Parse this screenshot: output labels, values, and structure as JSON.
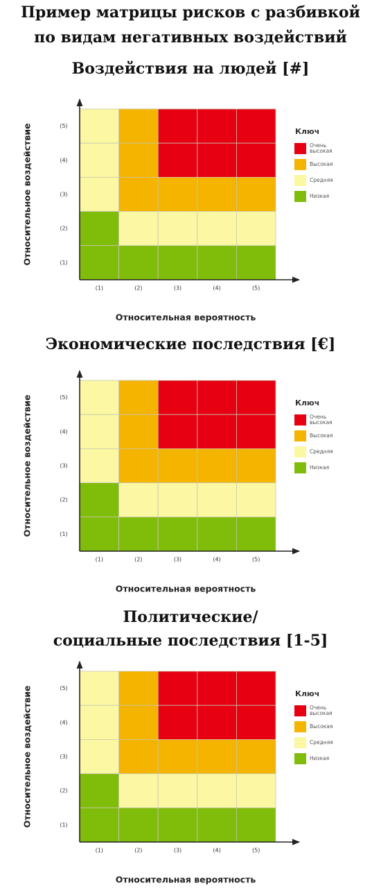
{
  "title": [
    "Пример матрицы рисков с разбивкой",
    "по видам негативных воздействий"
  ],
  "key": {
    "title": "Ключ",
    "items": [
      {
        "lines": [
          "Очень",
          "высокая"
        ],
        "color": "#e60012"
      },
      {
        "lines": [
          "Высокая"
        ],
        "color": "#f4b400"
      },
      {
        "lines": [
          "Средняя"
        ],
        "color": "#fbf7a2"
      },
      {
        "lines": [
          "Низкая"
        ],
        "color": "#80bc0a"
      }
    ]
  },
  "matrices": [
    {
      "title": [
        "Воздействия на людей [#]"
      ],
      "y_label": "Относительное воздействие",
      "x_label": "Относительная вероятность",
      "rows": [
        "(5)",
        "(4)",
        "(3)",
        "(2)",
        "(1)"
      ],
      "columns": [
        "(1)",
        "(2)",
        "(3)",
        "(4)",
        "(5)"
      ],
      "cells": [
        [
          2,
          1,
          0,
          0,
          0
        ],
        [
          2,
          1,
          0,
          0,
          0
        ],
        [
          2,
          1,
          1,
          1,
          1
        ],
        [
          3,
          2,
          2,
          2,
          2
        ],
        [
          3,
          3,
          3,
          3,
          3
        ]
      ]
    },
    {
      "title": [
        "Экономические последствия [€]"
      ],
      "y_label": "Относительное воздействие",
      "x_label": "Относительная вероятность",
      "rows": [
        "(5)",
        "(4)",
        "(3)",
        "(2)",
        "(1)"
      ],
      "columns": [
        "(1)",
        "(2)",
        "(3)",
        "(4)",
        "(5)"
      ],
      "cells": [
        [
          2,
          1,
          0,
          0,
          0
        ],
        [
          2,
          1,
          0,
          0,
          0
        ],
        [
          2,
          1,
          1,
          1,
          1
        ],
        [
          3,
          2,
          2,
          2,
          2
        ],
        [
          3,
          3,
          3,
          3,
          3
        ]
      ]
    },
    {
      "title": [
        "Политические/",
        "социальные последствия [1-5]"
      ],
      "y_label": "Относительное воздействие",
      "x_label": "Относительная вероятность",
      "rows": [
        "(5)",
        "(4)",
        "(3)",
        "(2)",
        "(1)"
      ],
      "columns": [
        "(1)",
        "(2)",
        "(3)",
        "(4)",
        "(5)"
      ],
      "cells": [
        [
          2,
          1,
          0,
          0,
          0
        ],
        [
          2,
          1,
          0,
          0,
          0
        ],
        [
          2,
          1,
          1,
          1,
          1
        ],
        [
          3,
          2,
          2,
          2,
          2
        ],
        [
          3,
          3,
          3,
          3,
          3
        ]
      ]
    }
  ]
}
